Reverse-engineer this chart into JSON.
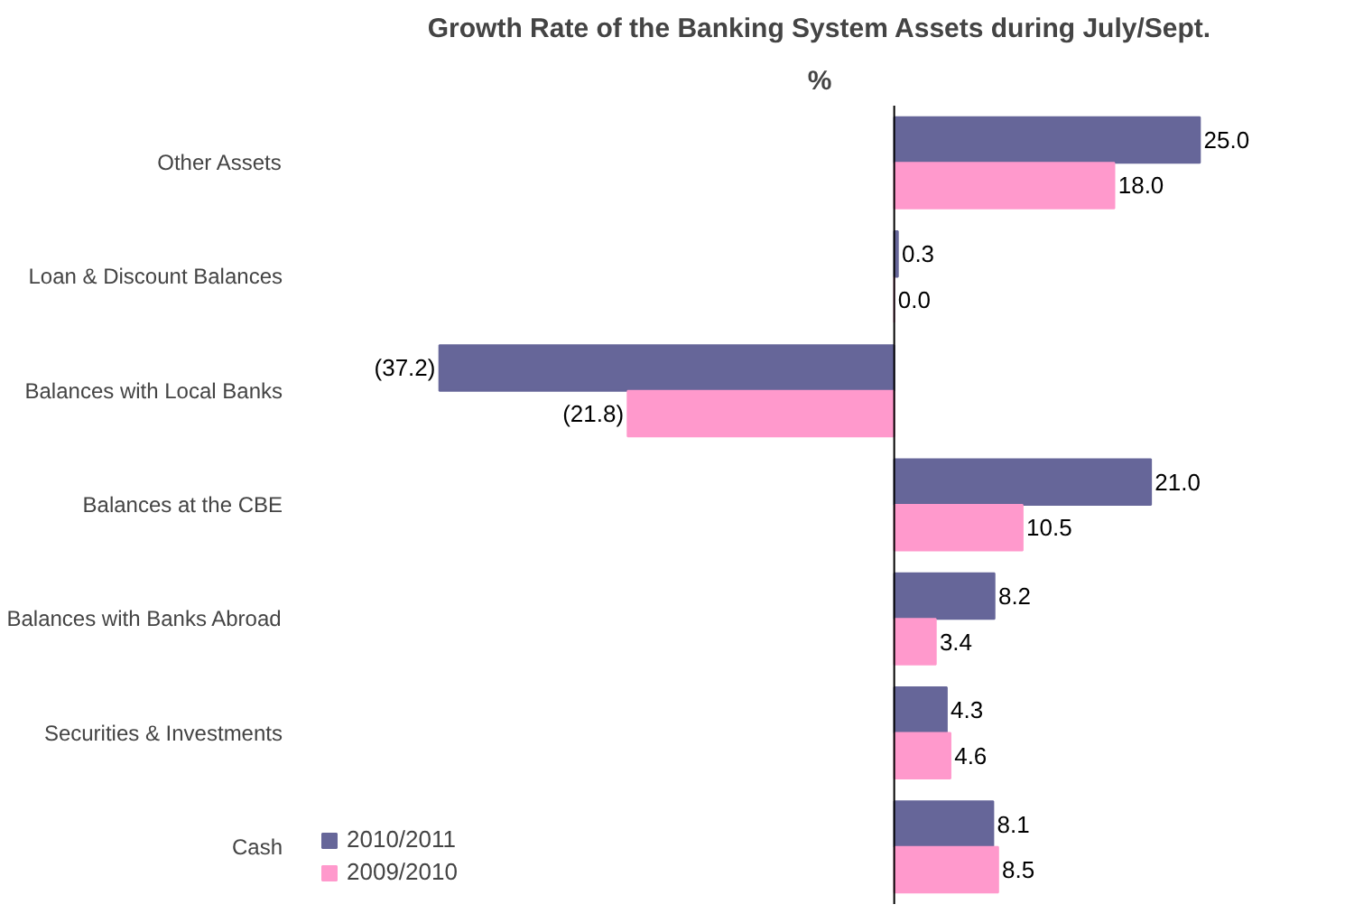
{
  "chart_data": {
    "type": "bar",
    "orientation": "horizontal",
    "title": "Growth Rate of the Banking System Assets during July/Sept.",
    "xlabel": "%",
    "categories": [
      "Other Assets",
      "Loan & Discount Balances",
      "Balances with Local Banks",
      "Balances at the CBE",
      "Balances with Banks Abroad",
      "Securities & Investments",
      "Cash"
    ],
    "series": [
      {
        "name": "2010/2011",
        "color": "#666699",
        "values": [
          25.0,
          0.3,
          -37.2,
          21.0,
          8.2,
          4.3,
          8.1
        ],
        "value_labels": [
          "25.0",
          "0.3",
          "(37.2)",
          "21.0",
          "8.2",
          "4.3",
          "8.1"
        ]
      },
      {
        "name": "2009/2010",
        "color": "#ff99cc",
        "values": [
          18.0,
          0.0,
          -21.8,
          10.5,
          3.4,
          4.6,
          8.5
        ],
        "value_labels": [
          "18.0",
          "0.0",
          "(21.8)",
          "10.5",
          "3.4",
          "4.6",
          "8.5"
        ]
      }
    ],
    "legend": "bottom left",
    "grid": false
  }
}
